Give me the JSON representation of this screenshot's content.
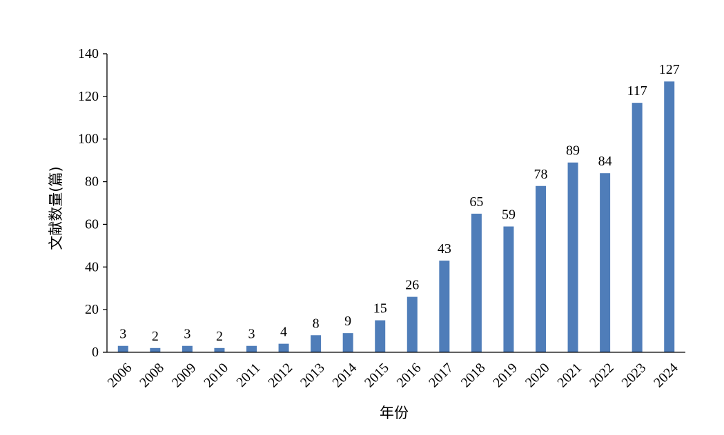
{
  "chart_data": {
    "type": "bar",
    "title": "",
    "xlabel": "年份",
    "ylabel": "文献数量(篇)",
    "categories": [
      "2006",
      "2008",
      "2009",
      "2010",
      "2011",
      "2012",
      "2013",
      "2014",
      "2015",
      "2016",
      "2017",
      "2018",
      "2019",
      "2020",
      "2021",
      "2022",
      "2023",
      "2024"
    ],
    "values": [
      3,
      2,
      3,
      2,
      3,
      4,
      8,
      9,
      15,
      26,
      43,
      65,
      59,
      78,
      89,
      84,
      117,
      127
    ],
    "ylim": [
      0,
      140
    ],
    "yticks": [
      0,
      20,
      40,
      60,
      80,
      100,
      120,
      140
    ],
    "bar_color": "#4f7db9",
    "grid": false,
    "legend": "none",
    "data_labels": true
  }
}
